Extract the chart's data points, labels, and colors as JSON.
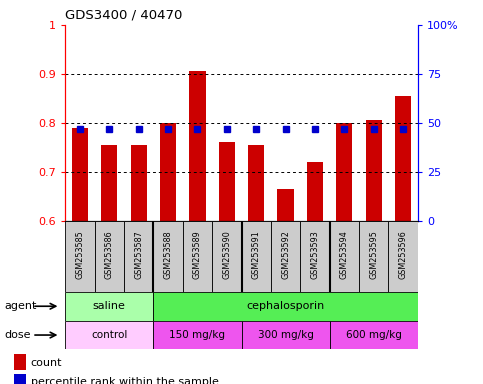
{
  "title": "GDS3400 / 40470",
  "samples": [
    "GSM253585",
    "GSM253586",
    "GSM253587",
    "GSM253588",
    "GSM253589",
    "GSM253590",
    "GSM253591",
    "GSM253592",
    "GSM253593",
    "GSM253594",
    "GSM253595",
    "GSM253596"
  ],
  "bar_values": [
    0.79,
    0.755,
    0.755,
    0.8,
    0.905,
    0.76,
    0.755,
    0.665,
    0.72,
    0.8,
    0.805,
    0.855
  ],
  "dot_percentile": [
    47,
    47,
    47,
    47,
    47,
    47,
    47,
    47,
    47,
    47,
    47,
    47
  ],
  "bar_color": "#cc0000",
  "dot_color": "#0000cc",
  "ylim_min": 0.6,
  "ylim_max": 1.0,
  "yticks": [
    0.6,
    0.7,
    0.8,
    0.9,
    1.0
  ],
  "ytick_labels": [
    "0.6",
    "0.7",
    "0.8",
    "0.9",
    "1"
  ],
  "y2ticks_pct": [
    0,
    25,
    50,
    75,
    100
  ],
  "y2tick_labels": [
    "0",
    "25",
    "50",
    "75",
    "100%"
  ],
  "agent_groups": [
    {
      "label": "saline",
      "start": 0,
      "end": 3,
      "color": "#aaffaa"
    },
    {
      "label": "cephalosporin",
      "start": 3,
      "end": 12,
      "color": "#55ee55"
    }
  ],
  "dose_groups": [
    {
      "label": "control",
      "start": 0,
      "end": 3,
      "color": "#ffccff"
    },
    {
      "label": "150 mg/kg",
      "start": 3,
      "end": 6,
      "color": "#ee66ee"
    },
    {
      "label": "300 mg/kg",
      "start": 6,
      "end": 9,
      "color": "#ee66ee"
    },
    {
      "label": "600 mg/kg",
      "start": 9,
      "end": 12,
      "color": "#ee66ee"
    }
  ],
  "gray_bg": "#cccccc",
  "legend_count_label": "count",
  "legend_pct_label": "percentile rank within the sample",
  "agent_label": "agent",
  "dose_label": "dose",
  "group_boundaries": [
    3,
    6,
    9
  ]
}
